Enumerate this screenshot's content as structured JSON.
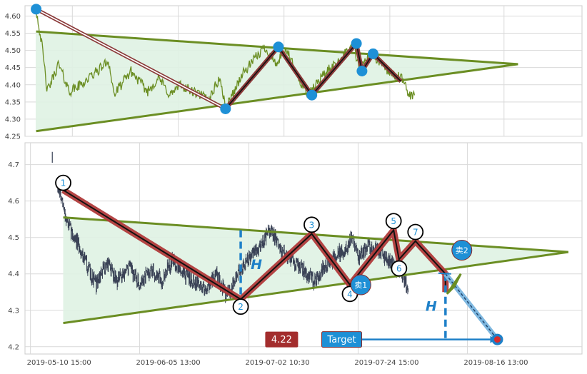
{
  "chart_data": [
    {
      "type": "line",
      "panel": "top",
      "ylim": [
        4.25,
        4.63
      ],
      "yticks": [
        4.25,
        4.3,
        4.35,
        4.4,
        4.45,
        4.5,
        4.55,
        4.6
      ],
      "ytick_labels": [
        "4.25",
        "4.30",
        "4.35",
        "4.40",
        "4.45",
        "4.50",
        "4.55",
        "4.60"
      ],
      "grid": true,
      "colors": {
        "price": "#6b8e23",
        "triangle": "#6b8e23",
        "fill": "#dff2e3",
        "zigzag": "#8b3a3a",
        "pivot": "#1e90d6"
      },
      "price_anchor_points": [
        [
          2.0,
          4.62
        ],
        [
          3.0,
          4.52
        ],
        [
          4.0,
          4.38
        ],
        [
          6.0,
          4.46
        ],
        [
          8.0,
          4.38
        ],
        [
          10.0,
          4.4
        ],
        [
          13.0,
          4.44
        ],
        [
          15.0,
          4.47
        ],
        [
          16.0,
          4.37
        ],
        [
          19.0,
          4.44
        ],
        [
          22.0,
          4.38
        ],
        [
          24.0,
          4.42
        ],
        [
          26.0,
          4.37
        ],
        [
          28.0,
          4.4
        ],
        [
          30.0,
          4.38
        ],
        [
          33.0,
          4.36
        ],
        [
          35.0,
          4.42
        ],
        [
          36.0,
          4.33
        ],
        [
          39.0,
          4.43
        ],
        [
          41.0,
          4.47
        ],
        [
          43.0,
          4.51
        ],
        [
          45.0,
          4.46
        ],
        [
          47.0,
          4.5
        ],
        [
          49.0,
          4.42
        ],
        [
          51.0,
          4.37
        ],
        [
          53.0,
          4.42
        ],
        [
          55.0,
          4.45
        ],
        [
          57.0,
          4.48
        ],
        [
          59.0,
          4.52
        ],
        [
          60.0,
          4.44
        ],
        [
          61.0,
          4.47
        ],
        [
          62.0,
          4.49
        ],
        [
          64.0,
          4.46
        ],
        [
          66.0,
          4.43
        ],
        [
          67.5,
          4.42
        ],
        [
          69.0,
          4.37
        ]
      ],
      "triangle_upper": [
        [
          2.0,
          4.555
        ],
        [
          88.5,
          4.46
        ]
      ],
      "triangle_lower": [
        [
          2.0,
          4.265
        ],
        [
          88.5,
          4.46
        ]
      ],
      "trend_line": [
        [
          2.0,
          4.62
        ],
        [
          36.0,
          4.33
        ]
      ],
      "zigzag": [
        [
          36.0,
          4.33
        ],
        [
          45.5,
          4.51
        ],
        [
          51.5,
          4.37
        ],
        [
          59.5,
          4.52
        ],
        [
          60.5,
          4.44
        ],
        [
          62.5,
          4.49
        ],
        [
          67.5,
          4.41
        ]
      ],
      "pivots": [
        [
          2.0,
          4.62
        ],
        [
          36.0,
          4.33
        ],
        [
          45.5,
          4.51
        ],
        [
          51.5,
          4.37
        ],
        [
          59.5,
          4.52
        ],
        [
          60.5,
          4.44
        ],
        [
          62.5,
          4.49
        ]
      ]
    },
    {
      "type": "candlestick",
      "panel": "bottom",
      "ylim": [
        4.18,
        4.76
      ],
      "yticks": [
        4.2,
        4.3,
        4.4,
        4.5,
        4.6,
        4.7
      ],
      "ytick_labels": [
        "4.2",
        "4.3",
        "4.4",
        "4.5",
        "4.6",
        "4.7"
      ],
      "categories": [
        "2019-05-10 15:00",
        "2019-06-05 13:00",
        "2019-07-02 10:30",
        "2019-07-24 15:00",
        "2019-08-16 13:00"
      ],
      "xtick_positions": [
        0,
        20,
        40,
        60,
        80
      ],
      "grid": true,
      "colors": {
        "candle": "#3a4256",
        "triangle": "#6b8e23",
        "fill": "#dff2e3",
        "zigzag": "#b03a3a",
        "label_circle": "#000000",
        "label_text": "#1e90d6",
        "measure": "#1e80c8",
        "badge_price": "#a32d2d",
        "badge_target": "#1e90d6"
      },
      "price_anchor_points": [
        [
          5.0,
          4.64
        ],
        [
          6.0,
          4.58
        ],
        [
          7.0,
          4.53
        ],
        [
          8.0,
          4.5
        ],
        [
          9.0,
          4.47
        ],
        [
          10.0,
          4.44
        ],
        [
          11.0,
          4.4
        ],
        [
          12.0,
          4.37
        ],
        [
          14.0,
          4.43
        ],
        [
          16.0,
          4.38
        ],
        [
          18.0,
          4.42
        ],
        [
          20.0,
          4.37
        ],
        [
          22.0,
          4.41
        ],
        [
          24.0,
          4.38
        ],
        [
          26.0,
          4.44
        ],
        [
          28.0,
          4.4
        ],
        [
          30.0,
          4.38
        ],
        [
          32.0,
          4.36
        ],
        [
          34.0,
          4.4
        ],
        [
          36.0,
          4.34
        ],
        [
          38.0,
          4.4
        ],
        [
          40.0,
          4.44
        ],
        [
          42.0,
          4.48
        ],
        [
          44.0,
          4.52
        ],
        [
          46.0,
          4.46
        ],
        [
          48.0,
          4.44
        ],
        [
          50.0,
          4.41
        ],
        [
          52.0,
          4.38
        ],
        [
          54.0,
          4.42
        ],
        [
          56.0,
          4.45
        ],
        [
          58.0,
          4.47
        ],
        [
          59.0,
          4.51
        ],
        [
          60.0,
          4.44
        ],
        [
          62.0,
          4.48
        ],
        [
          64.0,
          4.46
        ],
        [
          66.0,
          4.43
        ],
        [
          68.0,
          4.4
        ],
        [
          69.0,
          4.36
        ]
      ],
      "triangle_upper": [
        [
          6.0,
          4.555
        ],
        [
          98.5,
          4.46
        ]
      ],
      "triangle_lower": [
        [
          6.0,
          4.265
        ],
        [
          98.5,
          4.46
        ]
      ],
      "zigzag": [
        [
          6.0,
          4.63
        ],
        [
          38.5,
          4.33
        ],
        [
          51.5,
          4.51
        ],
        [
          58.5,
          4.37
        ],
        [
          66.5,
          4.52
        ],
        [
          67.5,
          4.44
        ],
        [
          70.5,
          4.49
        ],
        [
          76.0,
          4.4
        ],
        [
          76.0,
          4.35
        ]
      ],
      "pattern_points": [
        {
          "label": "1",
          "x": 6.0,
          "y": 4.65
        },
        {
          "label": "2",
          "x": 38.5,
          "y": 4.31
        },
        {
          "label": "3",
          "x": 51.5,
          "y": 4.535
        },
        {
          "label": "4",
          "x": 58.5,
          "y": 4.345
        },
        {
          "label": "5",
          "x": 66.5,
          "y": 4.545
        },
        {
          "label": "6",
          "x": 67.5,
          "y": 4.415
        },
        {
          "label": "7",
          "x": 70.5,
          "y": 4.515
        }
      ],
      "sell_markers": [
        {
          "label": "卖1",
          "x": 60.5,
          "y": 4.37
        },
        {
          "label": "卖2",
          "x": 79.0,
          "y": 4.465
        }
      ],
      "measure_lines": [
        {
          "label": "H",
          "x": 38.5,
          "y_top": 4.52,
          "y_bottom": 4.33
        },
        {
          "label": "H",
          "x": 76.0,
          "y_top": 4.4,
          "y_bottom": 4.22
        }
      ],
      "target_projection": [
        [
          76.0,
          4.4
        ],
        [
          85.5,
          4.22
        ]
      ],
      "badges": [
        {
          "label": "4.22",
          "x": 46.0,
          "y": 4.22
        },
        {
          "label": "Target",
          "x": 57.0,
          "y": 4.22
        }
      ],
      "target_point": [
        85.5,
        4.22
      ]
    }
  ]
}
